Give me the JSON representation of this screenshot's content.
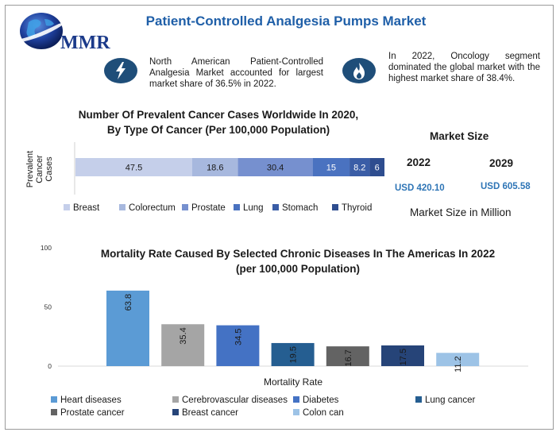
{
  "header": {
    "logo_text": "MMR",
    "title": "Patient-Controlled Analgesia Pumps Market"
  },
  "notes": {
    "left": {
      "icon": "lightning-icon",
      "text": "North American Patient-Controlled Analgesia Market accounted for largest market share of 36.5% in 2022."
    },
    "right": {
      "icon": "flame-icon",
      "text": "In 2022, Oncology segment dominated the global market with the highest market share of 38.4%."
    }
  },
  "market_size": {
    "title": "Market Size",
    "years": [
      "2022",
      "2029"
    ],
    "values": [
      "USD 420.10",
      "USD 605.58"
    ],
    "unit_label": "Market Size in Million"
  },
  "chart_data": [
    {
      "type": "bar",
      "orientation": "horizontal-stacked",
      "title": "Number Of Prevalent Cancer Cases Worldwide In 2020, By Type Of Cancer (Per 100,000 Population)",
      "title_lines": [
        "Number Of Prevalent Cancer Cases Worldwide In 2020,",
        "By Type Of Cancer (Per 100,000 Population)"
      ],
      "ylabel_lines": [
        "Prevalent",
        "Cancer",
        "Cases"
      ],
      "categories": [
        "Prevalent Cancer Cases"
      ],
      "series": [
        {
          "name": "Breast",
          "values": [
            47.5
          ],
          "color": "#c5cfea"
        },
        {
          "name": "Colorectum",
          "values": [
            18.6
          ],
          "color": "#a7b8de"
        },
        {
          "name": "Prostate",
          "values": [
            30.4
          ],
          "color": "#7690cf"
        },
        {
          "name": "Lung",
          "values": [
            15
          ],
          "color": "#4a72c0"
        },
        {
          "name": "Stomach",
          "values": [
            8.2
          ],
          "color": "#3a5da6"
        },
        {
          "name": "Thyroid",
          "values": [
            6
          ],
          "color": "#2e4d8f"
        }
      ],
      "legend": "bottom"
    },
    {
      "type": "bar",
      "title": "Mortality Rate Caused By Selected Chronic Diseases In The Americas In 2022 (per 100,000 Population)",
      "title_lines": [
        "Mortality Rate Caused By Selected Chronic Diseases In The Americas In 2022",
        "(per 100,000 Population)"
      ],
      "xlabel": "Mortality Rate",
      "ylim": [
        0,
        100
      ],
      "yticks": [
        "0",
        "50",
        "100"
      ],
      "categories": [
        "Heart diseases",
        "Cerebrovascular diseases",
        "Diabetes",
        "Lung cancer",
        "Prostate cancer",
        "Breast cancer",
        "Colon can"
      ],
      "values": [
        63.8,
        35.4,
        34.5,
        19.5,
        16.7,
        17.5,
        11.2
      ],
      "value_labels": [
        "63.8",
        "35.4",
        "34.5",
        "19.5",
        "16.7",
        "17.5",
        "11.2"
      ],
      "colors": [
        "#5b9bd5",
        "#a5a5a5",
        "#4472c4",
        "#255e91",
        "#636363",
        "#264478",
        "#9dc3e6"
      ],
      "legend": "bottom"
    }
  ]
}
